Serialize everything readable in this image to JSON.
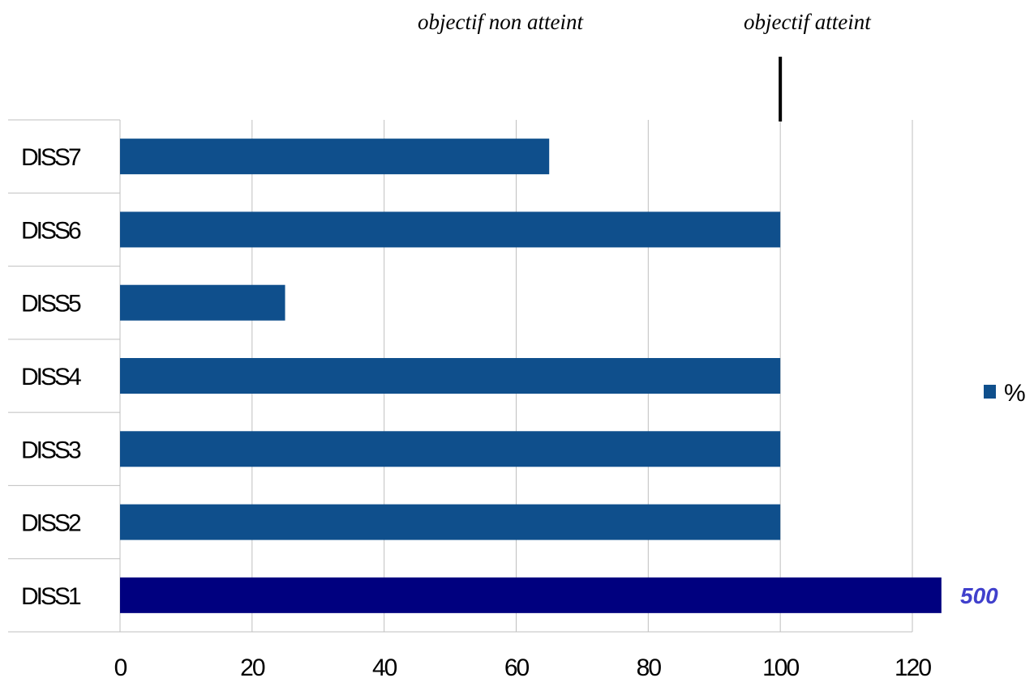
{
  "annotations": {
    "left": "objectif  non atteint",
    "right": "objectif atteint"
  },
  "chart_data": {
    "type": "bar",
    "orientation": "horizontal",
    "categories": [
      "DISS1",
      "DISS2",
      "DISS3",
      "DISS4",
      "DISS5",
      "DISS6",
      "DISS7"
    ],
    "series": [
      {
        "name": "%",
        "values": [
          125,
          100,
          100,
          100,
          25,
          100,
          65
        ]
      }
    ],
    "xlim": [
      0,
      120
    ],
    "xticks": [
      "0",
      "20",
      "40",
      "60",
      "80",
      "100",
      "120"
    ],
    "grid": true,
    "legend": "right",
    "target_value": 100,
    "callout": {
      "category": "DISS1",
      "text": "500"
    },
    "colors": {
      "bar": "#0f4f8c",
      "highlight_bar": "#00007f",
      "callout_text": "#4040cc",
      "grid": "#bfbfbf",
      "target_line": "#000000"
    }
  }
}
